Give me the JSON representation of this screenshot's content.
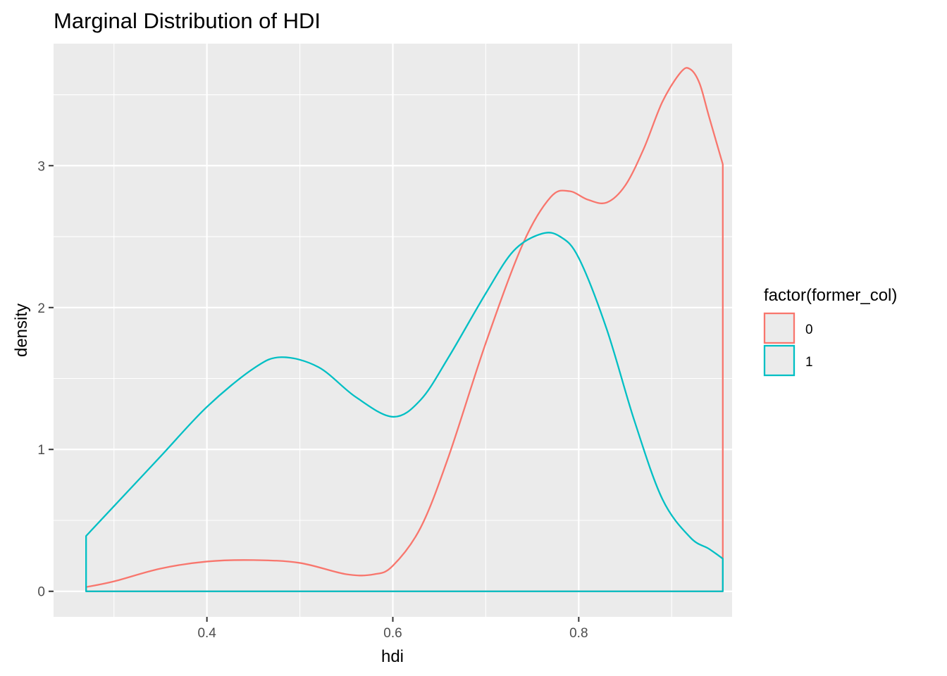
{
  "chart_data": {
    "type": "area",
    "title": "Marginal Distribution of HDI",
    "xlabel": "hdi",
    "ylabel": "density",
    "xlim": [
      0.235,
      0.965
    ],
    "ylim": [
      -0.18,
      3.86
    ],
    "x_ticks": [
      0.4,
      0.6,
      0.8
    ],
    "x_tick_labels": [
      "0.4",
      "0.6",
      "0.8"
    ],
    "x_minor_ticks": [
      0.3,
      0.5,
      0.7,
      0.9
    ],
    "y_ticks": [
      0,
      1,
      2,
      3
    ],
    "y_tick_labels": [
      "0",
      "1",
      "2",
      "3"
    ],
    "y_minor_ticks": [
      0.5,
      1.5,
      2.5,
      3.5
    ],
    "grid": true,
    "legend": {
      "title": "factor(former_col)",
      "position": "right"
    },
    "series": [
      {
        "name": "0",
        "color": "#F8766D",
        "x": [
          0.27,
          0.3,
          0.35,
          0.4,
          0.45,
          0.5,
          0.55,
          0.58,
          0.6,
          0.63,
          0.66,
          0.7,
          0.74,
          0.77,
          0.79,
          0.81,
          0.83,
          0.85,
          0.87,
          0.89,
          0.91,
          0.92,
          0.93,
          0.94,
          0.955
        ],
        "y": [
          0.03,
          0.07,
          0.16,
          0.21,
          0.22,
          0.2,
          0.12,
          0.12,
          0.18,
          0.45,
          0.95,
          1.75,
          2.45,
          2.78,
          2.82,
          2.76,
          2.74,
          2.86,
          3.12,
          3.45,
          3.66,
          3.68,
          3.58,
          3.35,
          3.01
        ]
      },
      {
        "name": "1",
        "color": "#00BFC4",
        "x": [
          0.27,
          0.3,
          0.35,
          0.4,
          0.45,
          0.48,
          0.52,
          0.56,
          0.6,
          0.63,
          0.66,
          0.7,
          0.73,
          0.76,
          0.78,
          0.8,
          0.83,
          0.86,
          0.89,
          0.92,
          0.94,
          0.955
        ],
        "y": [
          0.39,
          0.6,
          0.95,
          1.3,
          1.57,
          1.65,
          1.58,
          1.37,
          1.23,
          1.35,
          1.65,
          2.1,
          2.4,
          2.52,
          2.5,
          2.35,
          1.85,
          1.2,
          0.65,
          0.38,
          0.3,
          0.23
        ]
      }
    ]
  }
}
